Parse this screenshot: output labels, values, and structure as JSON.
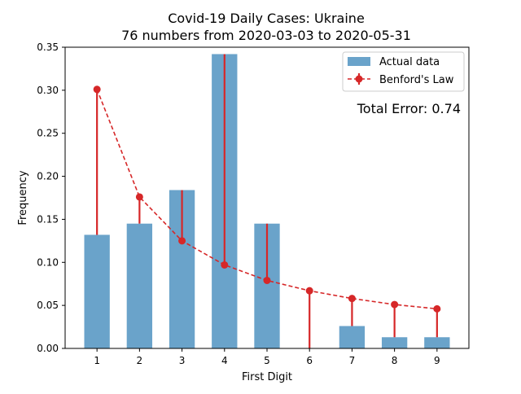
{
  "chart_data": {
    "type": "bar",
    "title": "Covid-19 Daily Cases: Ukraine",
    "subtitle": "76 numbers from 2020-03-03 to 2020-05-31",
    "xlabel": "First Digit",
    "ylabel": "Frequency",
    "categories": [
      1,
      2,
      3,
      4,
      5,
      6,
      7,
      8,
      9
    ],
    "xticks": [
      "1",
      "2",
      "3",
      "4",
      "5",
      "6",
      "7",
      "8",
      "9"
    ],
    "yticks": [
      "0.00",
      "0.05",
      "0.10",
      "0.15",
      "0.20",
      "0.25",
      "0.30",
      "0.35"
    ],
    "ylim": [
      0,
      0.35
    ],
    "series": [
      {
        "name": "Actual data",
        "style": "bar",
        "color": "#6aa3ca",
        "values": [
          0.132,
          0.145,
          0.184,
          0.342,
          0.145,
          0.0,
          0.026,
          0.013,
          0.013
        ]
      },
      {
        "name": "Benford's Law",
        "style": "dashed-line-with-error-bars",
        "color": "#d62728",
        "values": [
          0.301,
          0.176,
          0.125,
          0.097,
          0.079,
          0.067,
          0.058,
          0.051,
          0.046
        ]
      }
    ],
    "annotation": "Total Error: 0.74",
    "legend_position": "top-right",
    "grid": false
  }
}
